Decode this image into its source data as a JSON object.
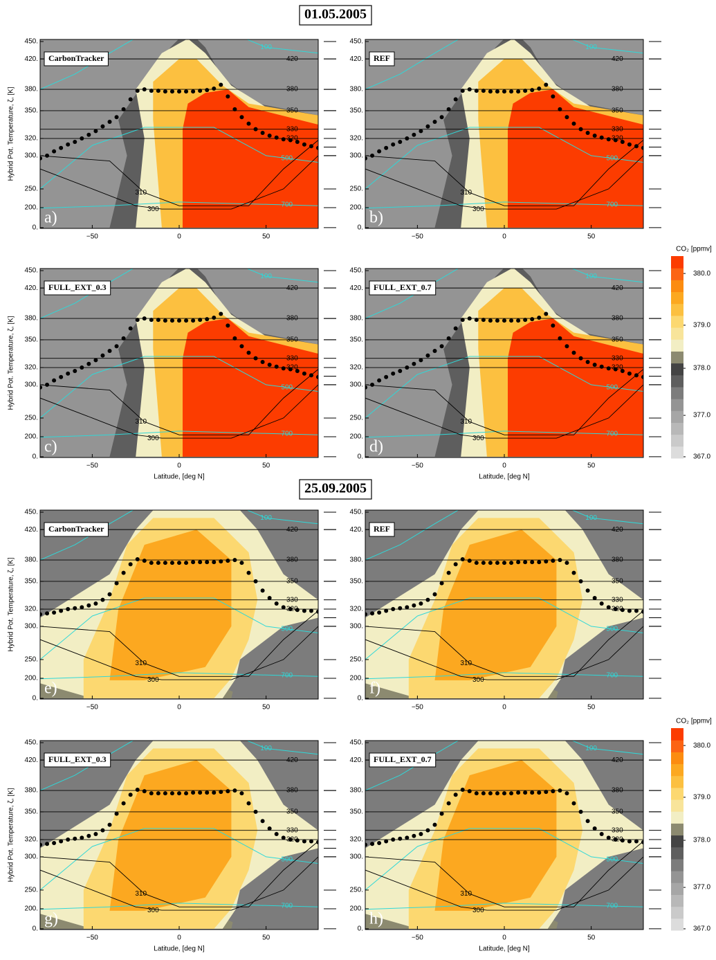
{
  "chart_data": {
    "type": "contour",
    "xlabel": "Latitude, [deg N]",
    "ylabel": "Hybrid Pot. Temperature, ζ, [K]",
    "xlim": [
      -80,
      80
    ],
    "xticks": [
      {
        "value": -50,
        "label": "−50"
      },
      0,
      50
    ],
    "yticks": [
      {
        "value": 450,
        "label": "450."
      },
      {
        "value": 420,
        "label": "420."
      },
      {
        "value": 380,
        "label": "380."
      },
      {
        "value": 350,
        "label": "350."
      },
      {
        "value": 320,
        "label": "320."
      },
      {
        "value": 300,
        "label": "300."
      },
      {
        "value": 250,
        "label": "250."
      },
      {
        "value": 200,
        "label": "200."
      },
      {
        "value": 0,
        "label": "0."
      }
    ],
    "isentropes": [
      420,
      380,
      350,
      330,
      320,
      310,
      300
    ],
    "isobars": [
      100,
      500,
      700
    ],
    "colorbar": {
      "title": "CO₂ [ppmv]",
      "ticks": [
        {
          "value": 367,
          "label": "367.0"
        },
        {
          "value": 377,
          "label": "377.0"
        },
        {
          "value": 378,
          "label": "378.0"
        },
        {
          "value": 379,
          "label": "379.0"
        },
        {
          "value": 380,
          "label": "380.0"
        }
      ],
      "colors": [
        "#dcdcdc",
        "#cacaca",
        "#b8b8b8",
        "#a6a6a6",
        "#949494",
        "#7c7c7c",
        "#5e5e5e",
        "#444444",
        "#8c8a70",
        "#f2eec4",
        "#f8e49a",
        "#fcd870",
        "#fcc040",
        "#fca820",
        "#fc8c10",
        "#fc6414",
        "#fc3c00"
      ]
    },
    "groups": [
      {
        "date": "01.05.2005",
        "tropopause": {
          "x": [
            -80,
            -76,
            -72,
            -68,
            -64,
            -60,
            -56,
            -52,
            -48,
            -44,
            -40,
            -36,
            -32,
            -28,
            -24,
            -20,
            -16,
            -12,
            -8,
            -4,
            0,
            4,
            8,
            12,
            16,
            20,
            24,
            28,
            32,
            36,
            40,
            44,
            48,
            52,
            56,
            60,
            64,
            68,
            72,
            76,
            80
          ],
          "y": [
            296,
            300,
            305,
            309,
            313,
            316,
            320,
            324,
            328,
            333,
            338,
            343,
            352,
            366,
            378,
            380,
            378,
            378,
            377,
            377,
            377,
            377,
            377,
            378,
            379,
            381,
            386,
            370,
            352,
            343,
            336,
            330,
            326,
            323,
            321,
            319,
            318,
            316,
            313,
            311,
            309
          ]
        },
        "panels": [
          {
            "name": "CarbonTracker",
            "letter": "a)"
          },
          {
            "name": "REF",
            "letter": "b)"
          },
          {
            "name": "FULL_EXT_0.3",
            "letter": "c)"
          },
          {
            "name": "FULL_EXT_0.7",
            "letter": "d)"
          }
        ]
      },
      {
        "date": "25.09.2005",
        "tropopause": {
          "x": [
            -80,
            -76,
            -72,
            -68,
            -64,
            -60,
            -56,
            -52,
            -48,
            -44,
            -40,
            -36,
            -32,
            -28,
            -24,
            -20,
            -16,
            -12,
            -8,
            -4,
            0,
            4,
            8,
            12,
            16,
            20,
            24,
            28,
            32,
            36,
            40,
            44,
            48,
            52,
            56,
            60,
            64,
            68,
            72,
            76,
            80
          ],
          "y": [
            314,
            315,
            316,
            318,
            320,
            321,
            322,
            324,
            326,
            330,
            336,
            348,
            362,
            374,
            381,
            379,
            376,
            376,
            376,
            376,
            376,
            376,
            377,
            377,
            377,
            377,
            378,
            379,
            380,
            376,
            362,
            350,
            340,
            332,
            326,
            322,
            320,
            319,
            318,
            318,
            317
          ]
        },
        "panels": [
          {
            "name": "CarbonTracker",
            "letter": "e)"
          },
          {
            "name": "REF",
            "letter": "f)"
          },
          {
            "name": "FULL_EXT_0.3",
            "letter": "g)"
          },
          {
            "name": "FULL_EXT_0.7",
            "letter": "h)"
          }
        ]
      }
    ]
  }
}
